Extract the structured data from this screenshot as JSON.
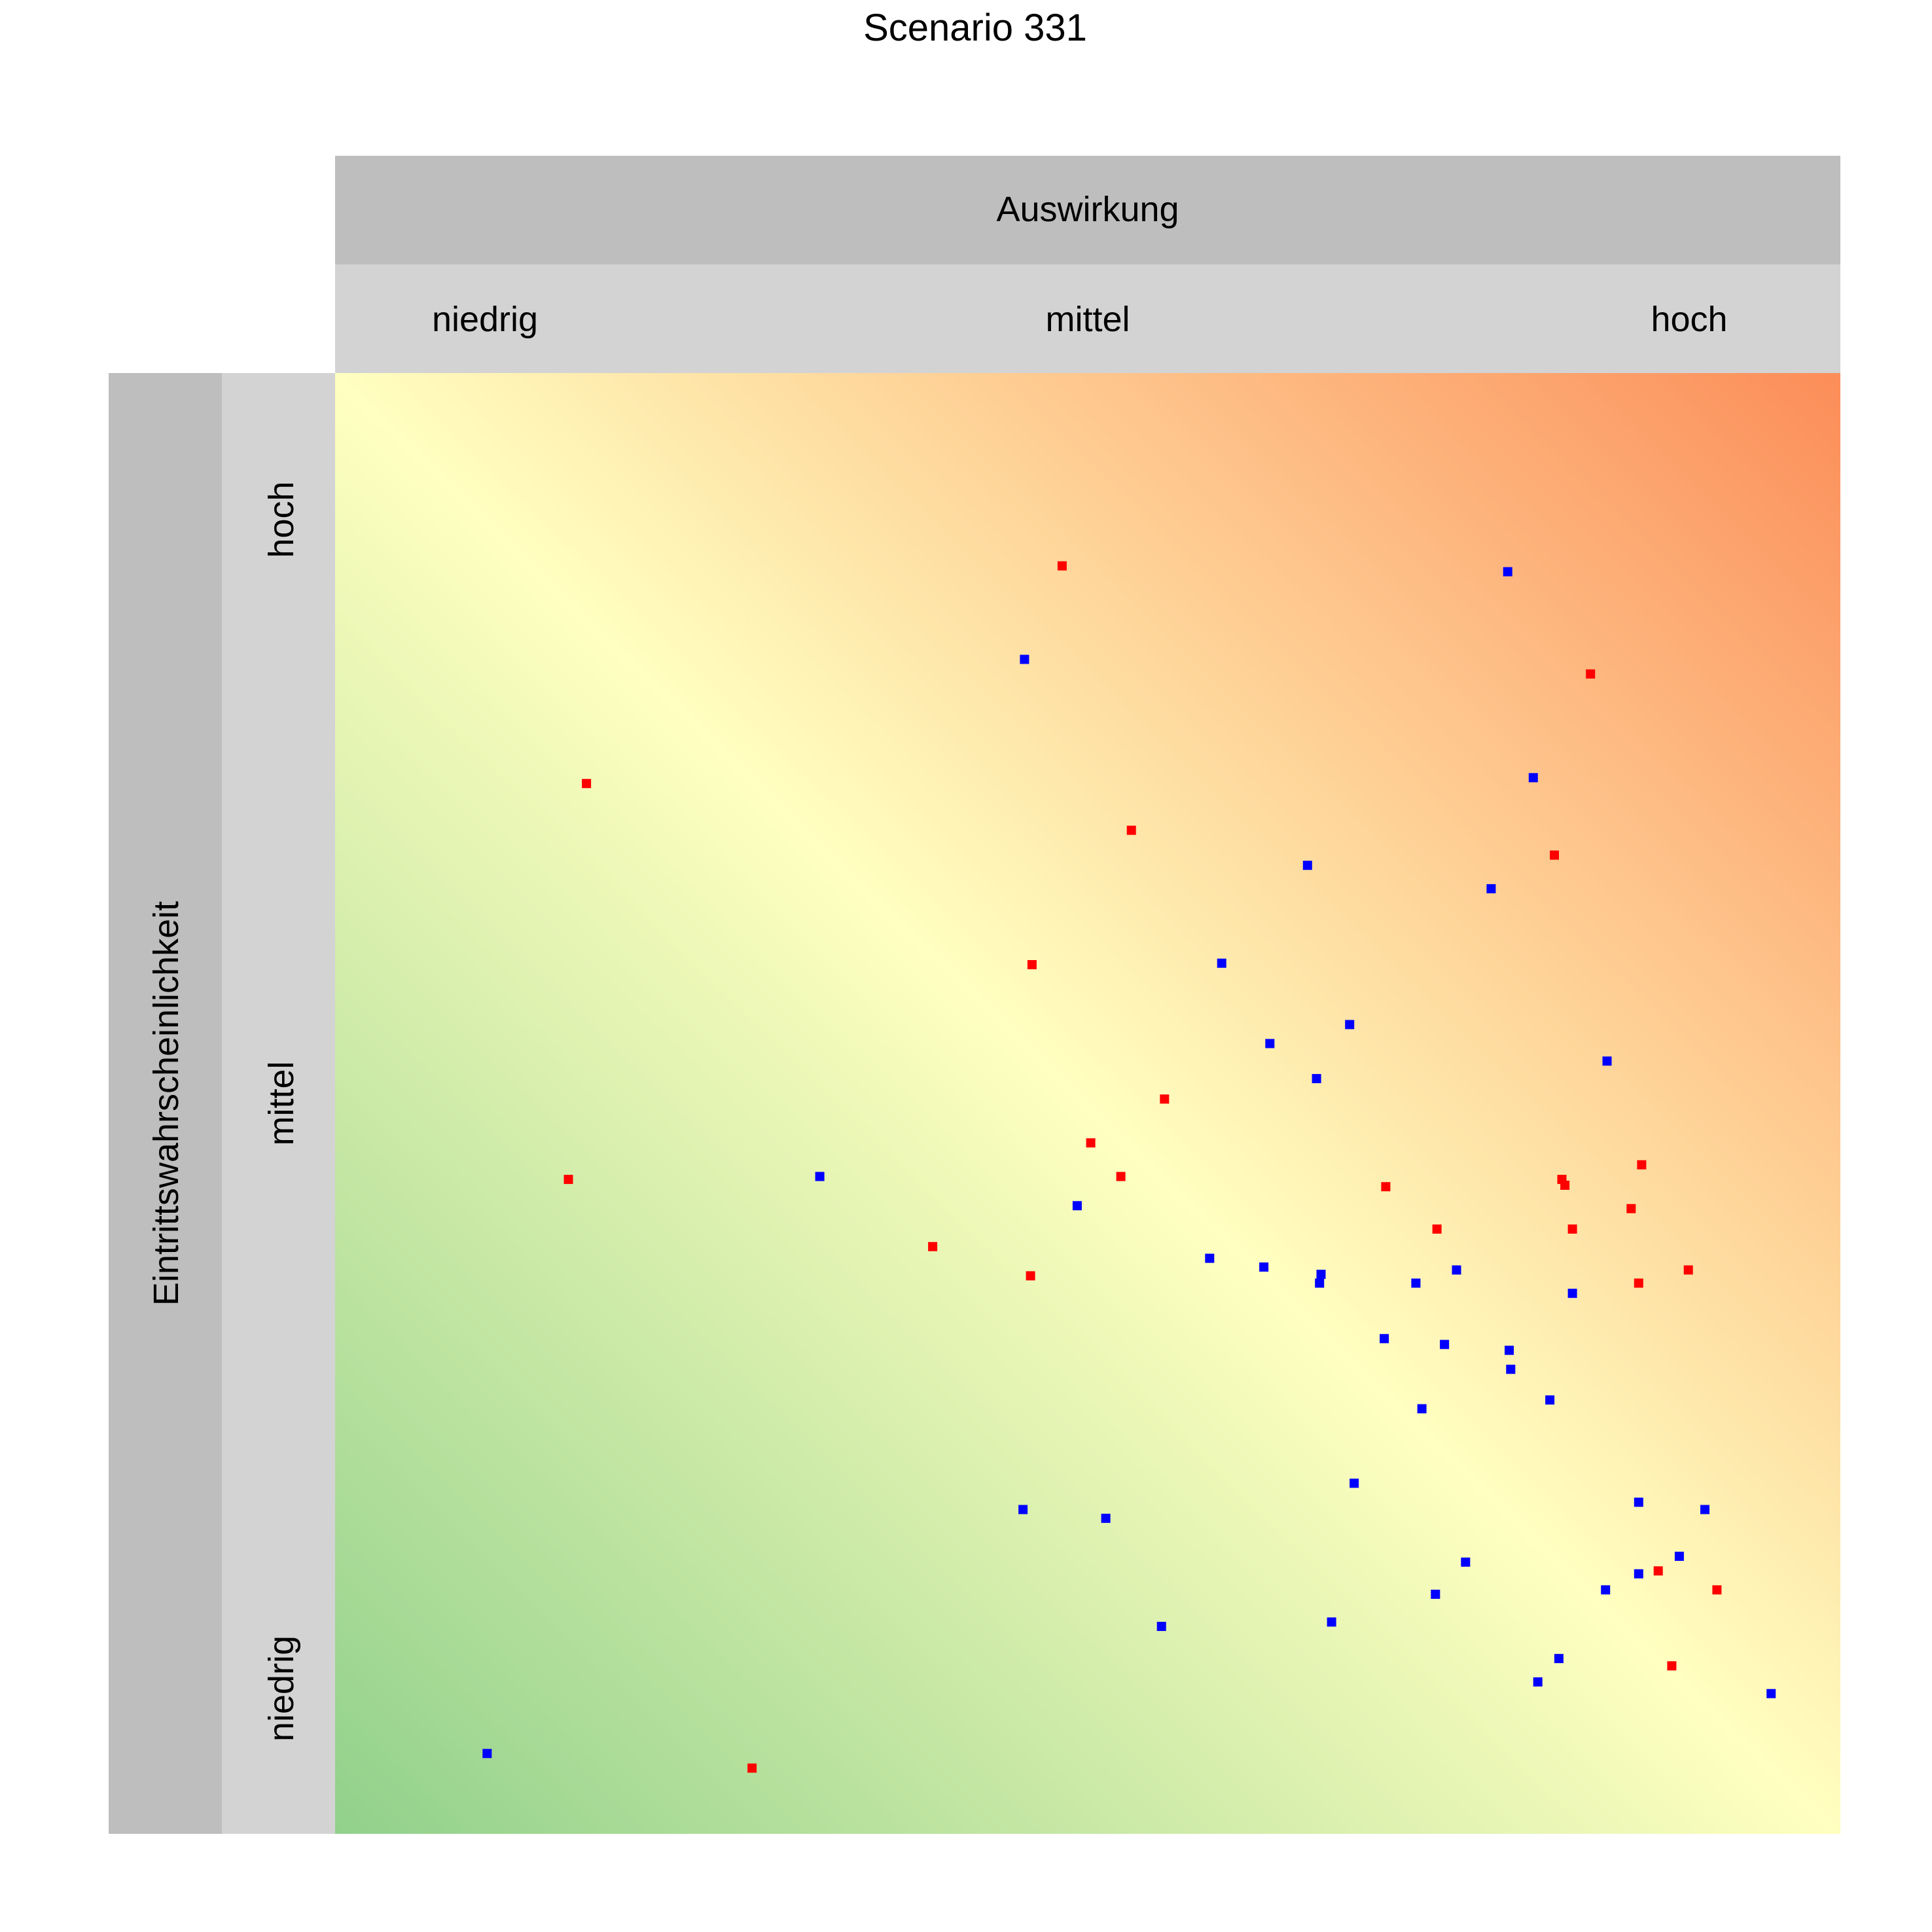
{
  "chart_data": {
    "type": "scatter",
    "title": "Scenario 331",
    "xlabel": "Auswirkung",
    "ylabel": "Eintrittswahrscheinlichkeit",
    "x_categories": [
      "niedrig",
      "mittel",
      "hoch"
    ],
    "y_categories": [
      "niedrig",
      "mittel",
      "hoch"
    ],
    "xlim": [
      0,
      1
    ],
    "ylim": [
      0,
      1
    ],
    "grid": false,
    "colors": {
      "background_low": "#91d18b",
      "background_mid": "#ffffc0",
      "background_high": "#fc8d59",
      "strip_outer": "#bebebe",
      "strip_inner": "#d3d3d3"
    },
    "series": [
      {
        "color": "#ff0000",
        "points": [
          [
            0.483,
            0.868
          ],
          [
            0.834,
            0.794
          ],
          [
            0.167,
            0.719
          ],
          [
            0.529,
            0.687
          ],
          [
            0.81,
            0.67
          ],
          [
            0.463,
            0.595
          ],
          [
            0.551,
            0.503
          ],
          [
            0.502,
            0.473
          ],
          [
            0.155,
            0.448
          ],
          [
            0.522,
            0.45
          ],
          [
            0.698,
            0.443
          ],
          [
            0.815,
            0.448
          ],
          [
            0.817,
            0.444
          ],
          [
            0.868,
            0.458
          ],
          [
            0.732,
            0.414
          ],
          [
            0.822,
            0.414
          ],
          [
            0.861,
            0.428
          ],
          [
            0.397,
            0.402
          ],
          [
            0.462,
            0.382
          ],
          [
            0.866,
            0.377
          ],
          [
            0.899,
            0.386
          ],
          [
            0.879,
            0.18
          ],
          [
            0.918,
            0.167
          ],
          [
            0.888,
            0.115
          ],
          [
            0.277,
            0.045
          ]
        ]
      },
      {
        "color": "#0000ff",
        "points": [
          [
            0.779,
            0.864
          ],
          [
            0.458,
            0.804
          ],
          [
            0.796,
            0.723
          ],
          [
            0.646,
            0.663
          ],
          [
            0.768,
            0.647
          ],
          [
            0.589,
            0.596
          ],
          [
            0.621,
            0.541
          ],
          [
            0.674,
            0.554
          ],
          [
            0.652,
            0.517
          ],
          [
            0.845,
            0.529
          ],
          [
            0.322,
            0.45
          ],
          [
            0.493,
            0.43
          ],
          [
            0.581,
            0.394
          ],
          [
            0.617,
            0.388
          ],
          [
            0.655,
            0.383
          ],
          [
            0.654,
            0.377
          ],
          [
            0.718,
            0.377
          ],
          [
            0.745,
            0.386
          ],
          [
            0.822,
            0.37
          ],
          [
            0.697,
            0.339
          ],
          [
            0.737,
            0.335
          ],
          [
            0.78,
            0.331
          ],
          [
            0.781,
            0.318
          ],
          [
            0.807,
            0.297
          ],
          [
            0.722,
            0.291
          ],
          [
            0.677,
            0.24
          ],
          [
            0.457,
            0.222
          ],
          [
            0.512,
            0.216
          ],
          [
            0.751,
            0.186
          ],
          [
            0.731,
            0.164
          ],
          [
            0.866,
            0.227
          ],
          [
            0.91,
            0.222
          ],
          [
            0.893,
            0.19
          ],
          [
            0.866,
            0.178
          ],
          [
            0.844,
            0.167
          ],
          [
            0.662,
            0.145
          ],
          [
            0.549,
            0.142
          ],
          [
            0.813,
            0.12
          ],
          [
            0.799,
            0.104
          ],
          [
            0.954,
            0.096
          ],
          [
            0.101,
            0.055
          ]
        ]
      }
    ]
  }
}
